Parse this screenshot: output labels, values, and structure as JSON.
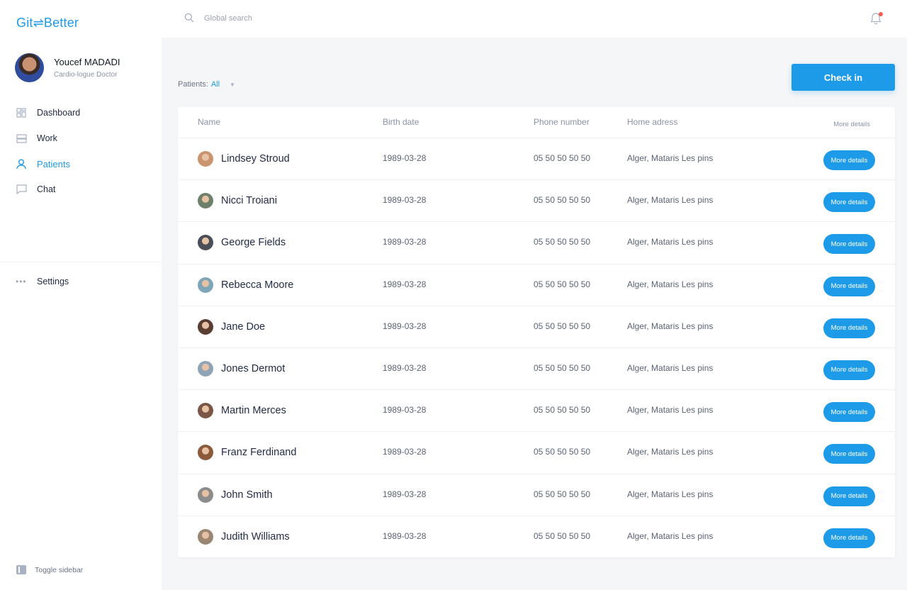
{
  "app": {
    "logo": "Git⇌Better",
    "brand_color": "#1E9BE8"
  },
  "profile": {
    "name": "Youcef MADADI",
    "role": "Cardio-logue Doctor"
  },
  "nav": {
    "items": [
      {
        "label": "Dashboard",
        "icon": "dashboard-icon"
      },
      {
        "label": "Work",
        "icon": "work-icon"
      },
      {
        "label": "Patients",
        "icon": "user-icon",
        "active": true
      },
      {
        "label": "Chat",
        "icon": "chat-icon"
      }
    ],
    "settings": "Settings",
    "toggle": "Toggle sidebar"
  },
  "topbar": {
    "search_placeholder": "Global search",
    "notification_dot_color": "#F25C54"
  },
  "filter": {
    "label": "Patients:",
    "value": "All"
  },
  "checkin_label": "Check in",
  "table": {
    "headers": {
      "name": "Name",
      "birth": "Birth date",
      "phone": "Phone number",
      "address": "Home adress",
      "more": "More details"
    },
    "button_label": "More details",
    "rows": [
      {
        "name": "Lindsey Stroud",
        "birth": "1989-03-28",
        "phone": "05 50 50 50 50",
        "address": "Alger, Mataris Les pins",
        "avatar": "#C9946E"
      },
      {
        "name": "Nicci Troiani",
        "birth": "1989-03-28",
        "phone": "05 50 50 50 50",
        "address": "Alger, Mataris Les pins",
        "avatar": "#6E7F6A"
      },
      {
        "name": "George Fields",
        "birth": "1989-03-28",
        "phone": "05 50 50 50 50",
        "address": "Alger, Mataris Les pins",
        "avatar": "#4A4E58"
      },
      {
        "name": "Rebecca Moore",
        "birth": "1989-03-28",
        "phone": "05 50 50 50 50",
        "address": "Alger, Mataris Les pins",
        "avatar": "#7EA6B8"
      },
      {
        "name": "Jane Doe",
        "birth": "1989-03-28",
        "phone": "05 50 50 50 50",
        "address": "Alger, Mataris Les pins",
        "avatar": "#5A3E32"
      },
      {
        "name": "Jones Dermot",
        "birth": "1989-03-28",
        "phone": "05 50 50 50 50",
        "address": "Alger, Mataris Les pins",
        "avatar": "#8FA4B5"
      },
      {
        "name": "Martin Merces",
        "birth": "1989-03-28",
        "phone": "05 50 50 50 50",
        "address": "Alger, Mataris Les pins",
        "avatar": "#7A5646"
      },
      {
        "name": "Franz Ferdinand",
        "birth": "1989-03-28",
        "phone": "05 50 50 50 50",
        "address": "Alger, Mataris Les pins",
        "avatar": "#8A5A3A"
      },
      {
        "name": "John Smith",
        "birth": "1989-03-28",
        "phone": "05 50 50 50 50",
        "address": "Alger, Mataris Les pins",
        "avatar": "#8C8C8C"
      },
      {
        "name": "Judith Williams",
        "birth": "1989-03-28",
        "phone": "05 50 50 50 50",
        "address": "Alger, Mataris Les pins",
        "avatar": "#9A8672"
      }
    ]
  }
}
